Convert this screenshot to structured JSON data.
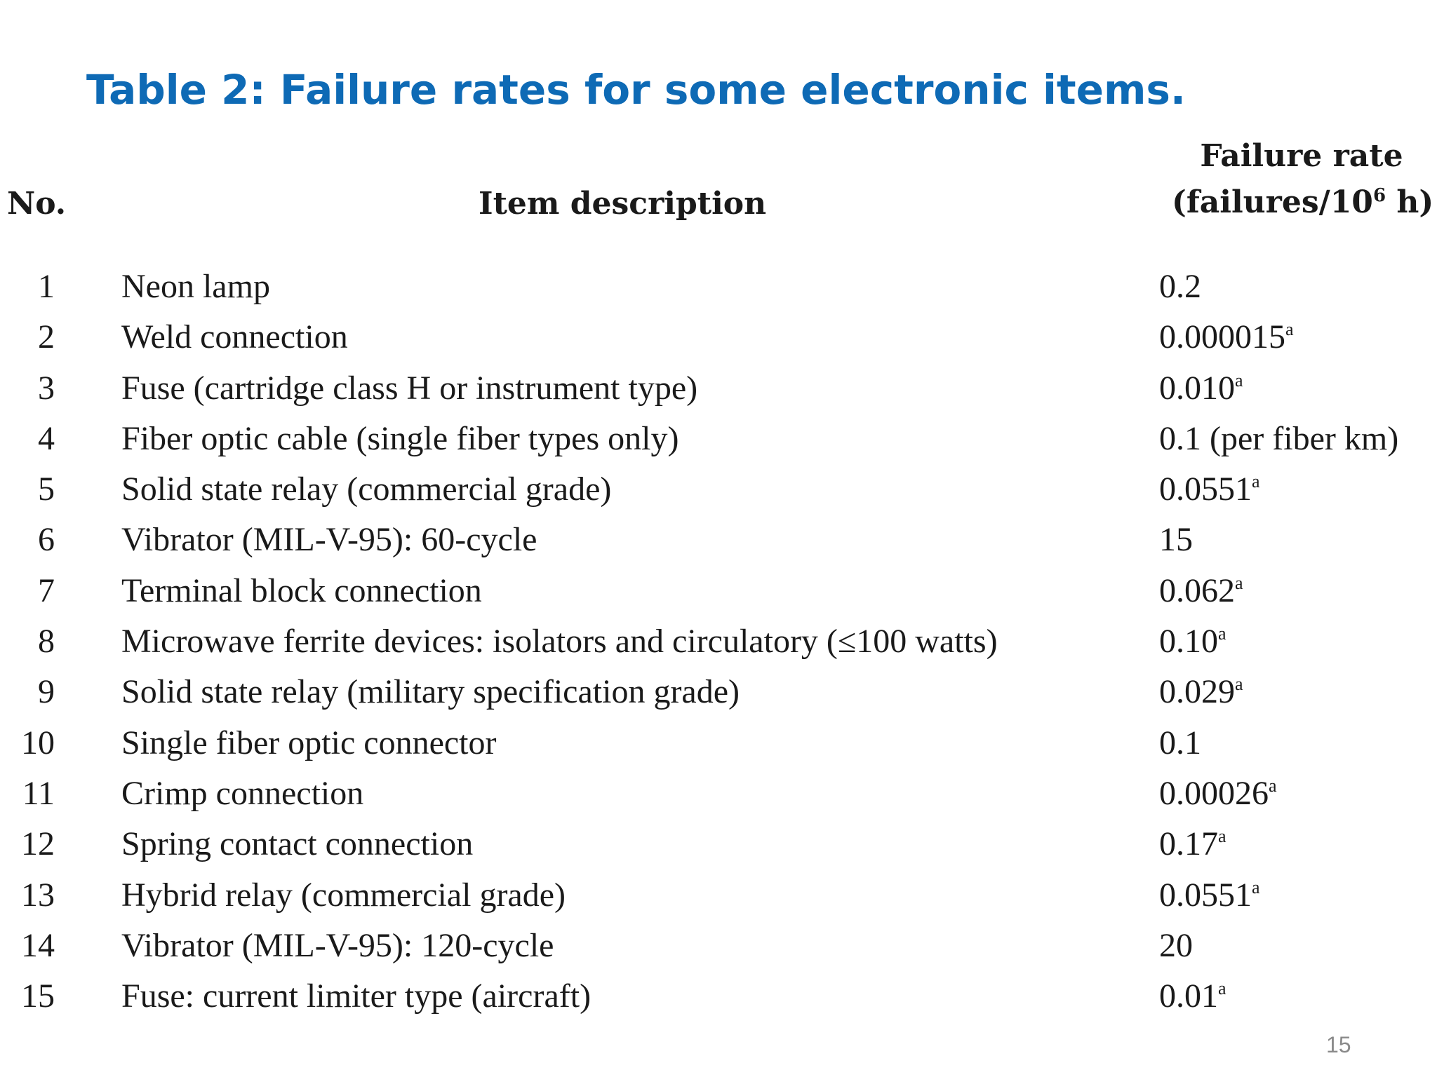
{
  "title": "Table 2: Failure rates for some electronic items.",
  "table": {
    "headers": {
      "no": "No.",
      "description": "Item description",
      "rate_line1": "Failure rate",
      "rate_line2_prefix": "(failures/10",
      "rate_line2_exp": "6",
      "rate_line2_suffix": " h)"
    },
    "rows": [
      {
        "no": "1",
        "description": "Neon lamp",
        "rate": "0.2",
        "footnote": ""
      },
      {
        "no": "2",
        "description": "Weld connection",
        "rate": "0.000015",
        "footnote": "a"
      },
      {
        "no": "3",
        "description": "Fuse (cartridge class H or instrument type)",
        "rate": "0.010",
        "footnote": "a"
      },
      {
        "no": "4",
        "description": "Fiber optic cable (single fiber types only)",
        "rate": "0.1 (per fiber km)",
        "footnote": ""
      },
      {
        "no": "5",
        "description": "Solid state relay (commercial grade)",
        "rate": "0.0551",
        "footnote": "a"
      },
      {
        "no": "6",
        "description": "Vibrator (MIL-V-95): 60-cycle",
        "rate": "15",
        "footnote": ""
      },
      {
        "no": "7",
        "description": "Terminal block connection",
        "rate": "0.062",
        "footnote": "a"
      },
      {
        "no": "8",
        "description": "Microwave ferrite devices: isolators and circulatory (≤100 watts)",
        "rate": "0.10",
        "footnote": "a"
      },
      {
        "no": "9",
        "description": "Solid state relay (military specification grade)",
        "rate": "0.029",
        "footnote": "a"
      },
      {
        "no": "10",
        "description": "Single fiber optic connector",
        "rate": "0.1",
        "footnote": ""
      },
      {
        "no": "11",
        "description": "Crimp connection",
        "rate": "0.00026",
        "footnote": "a"
      },
      {
        "no": "12",
        "description": "Spring contact connection",
        "rate": "0.17",
        "footnote": "a"
      },
      {
        "no": "13",
        "description": "Hybrid relay (commercial grade)",
        "rate": "0.0551",
        "footnote": "a"
      },
      {
        "no": "14",
        "description": "Vibrator (MIL-V-95): 120-cycle",
        "rate": "20",
        "footnote": ""
      },
      {
        "no": "15",
        "description": "Fuse: current limiter type (aircraft)",
        "rate": "0.01",
        "footnote": "a"
      }
    ]
  },
  "page_number": "15"
}
